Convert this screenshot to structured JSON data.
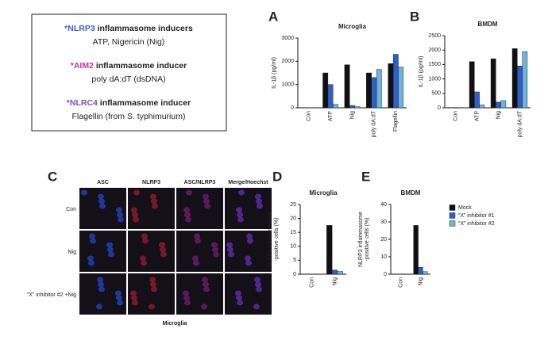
{
  "inducer_box": [
    {
      "marker": "*NLRP3",
      "color": "#3a5fcd",
      "title": " inflammasome inducers",
      "detail": "ATP, Nigericin (Nig)"
    },
    {
      "marker": "*AIM2",
      "color": "#c0399b",
      "title": " inflammasome inducer",
      "detail": "poly dA:dT (dsDNA)"
    },
    {
      "marker": "*NLRC4",
      "color": "#7a4fc0",
      "title": " inflammasome inducer",
      "detail": "Flagellin (from S. typhimurium)"
    }
  ],
  "panel_labels": [
    "A",
    "B",
    "C",
    "D",
    "E"
  ],
  "panel_c": {
    "columns": [
      {
        "label": "ASC",
        "color": "#2a9d2a"
      },
      {
        "label": "NLRP3",
        "color": "#d02020"
      },
      {
        "label": "ASC/NLRP3",
        "color": "#b03080"
      },
      {
        "label": "Merge/Hoechst",
        "color": "#6a4fd0"
      }
    ],
    "rows": [
      "Con",
      "Nig",
      "\"X\" inhibitor #2 +Nig"
    ],
    "caption": "Microglia"
  },
  "chart_data": [
    {
      "type": "bar",
      "title": "Microglia",
      "ylabel": [
        "IL-1β (pg/ml)"
      ],
      "categories": [
        "Con",
        "ATP",
        "Nig",
        "poly dA:dT",
        "Flagellin"
      ],
      "series": [
        {
          "color": "#111111",
          "values": [
            10,
            1500,
            1850,
            1500,
            1900
          ]
        },
        {
          "color": "#2f5fc4",
          "values": [
            10,
            1000,
            100,
            1300,
            2300
          ]
        },
        {
          "color": "#6fb3d8",
          "values": [
            10,
            150,
            50,
            1650,
            1750
          ]
        }
      ],
      "ylim": [
        0,
        3000
      ],
      "yticks": [
        0,
        1000,
        2000,
        3000
      ]
    },
    {
      "type": "bar",
      "title": "BMDM",
      "ylabel": [
        "IL-1β (pg/ml)"
      ],
      "categories": [
        "Con",
        "ATP",
        "Nig",
        "poly dA:dT"
      ],
      "series": [
        {
          "color": "#111111",
          "values": [
            10,
            1600,
            1700,
            2050
          ]
        },
        {
          "color": "#2f5fc4",
          "values": [
            10,
            550,
            200,
            1450
          ]
        },
        {
          "color": "#6fb3d8",
          "values": [
            10,
            100,
            250,
            1950
          ]
        }
      ],
      "ylim": [
        0,
        2500
      ],
      "yticks": [
        0,
        500,
        1000,
        1500,
        2000,
        2500
      ]
    },
    {
      "type": "bar",
      "title": "Microglia",
      "ylabel": [
        "NLRP3 inflammasome",
        "-positive cells (%)"
      ],
      "categories": [
        "Con",
        "Nig"
      ],
      "series": [
        {
          "color": "#111111",
          "values": [
            0,
            17.5
          ]
        },
        {
          "color": "#2f5fc4",
          "values": [
            0,
            1.5
          ]
        },
        {
          "color": "#6fb3d8",
          "values": [
            0,
            1
          ]
        }
      ],
      "ylim": [
        0,
        25
      ],
      "yticks": [
        0,
        5,
        10,
        15,
        20,
        25
      ]
    },
    {
      "type": "bar",
      "title": "BMDM",
      "ylabel": [
        "NLRP3 inflammasome",
        "-positive cells (%)"
      ],
      "categories": [
        "Con",
        "Nig"
      ],
      "series": [
        {
          "name": "Mock",
          "color": "#111111",
          "values": [
            0,
            28
          ]
        },
        {
          "name": "“X” inhibitor #1",
          "color": "#2f5fc4",
          "values": [
            0,
            4
          ]
        },
        {
          "name": "“X” inhibitor #2",
          "color": "#6fb3d8",
          "values": [
            0,
            1.5
          ]
        }
      ],
      "ylim": [
        0,
        40
      ],
      "yticks": [
        0,
        10,
        20,
        30,
        40
      ]
    }
  ]
}
